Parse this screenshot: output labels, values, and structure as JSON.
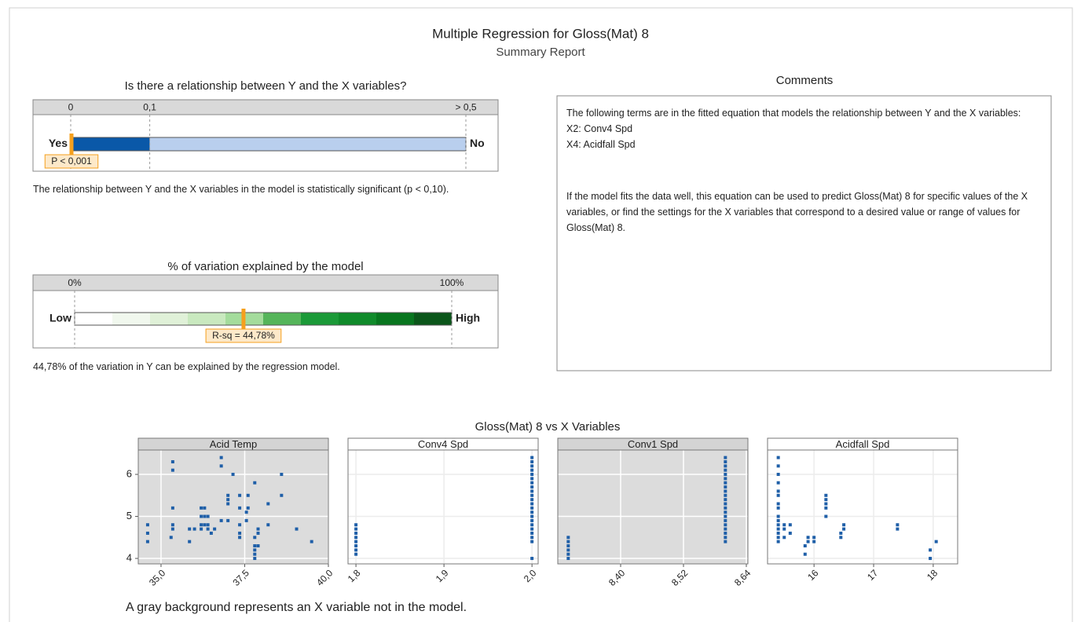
{
  "header": {
    "title": "Multiple Regression for Gloss(Mat) 8",
    "subtitle": "Summary Report"
  },
  "chart_data": [
    {
      "type": "gauge",
      "title": "Is there a relationship between Y and the X variables?",
      "xlim": [
        0,
        0.5
      ],
      "xticks": [
        0,
        {
          "value": 0.1,
          "label": "0,1"
        },
        {
          "value": 0.5,
          "label": "> 0,5"
        }
      ],
      "low_label": "Yes",
      "high_label": "No",
      "colors": [
        "#0a58a8",
        "#b9cfee"
      ],
      "marker_color": "#f5a01e",
      "values": [
        0.001
      ],
      "value_labels": [
        "P < 0,001"
      ],
      "description": "The relationship between Y and the X variables in the model is statistically significant (p < 0,10)."
    },
    {
      "type": "gauge",
      "title": "% of variation explained by the model",
      "xlim": [
        0,
        100
      ],
      "xticks": [
        {
          "value": 0,
          "label": "0%"
        },
        {
          "value": 100,
          "label": "100%"
        }
      ],
      "low_label": "Low",
      "high_label": "High",
      "colors": [
        "#ffffff",
        "#f1f8ee",
        "#e0f1d8",
        "#c9e9bf",
        "#a4dc9c",
        "#55b55a",
        "#1b9a38",
        "#108b2b",
        "#08761f",
        "#0b561a"
      ],
      "marker_color": "#f5a01e",
      "values": [
        44.78
      ],
      "value_labels": [
        "R-sq = 44,78%"
      ],
      "description": "44,78% of the variation in Y can be explained by the regression model."
    },
    {
      "type": "scatter",
      "title": "Gloss(Mat) 8 vs X Variables",
      "color": "#1f5fa8",
      "ylim": [
        3.87,
        6.58
      ],
      "yticks": [
        4,
        5,
        6
      ],
      "panels": [
        {
          "title": "Acid Temp",
          "in_model": false,
          "xlim": [
            34.32,
            40.0
          ],
          "xticks": [
            {
              "value": 35,
              "label": "35,0"
            },
            {
              "value": 37.5,
              "label": "37,5"
            },
            {
              "value": 40,
              "label": "40,0"
            }
          ],
          "x": [
            34.6,
            34.6,
            34.6,
            35.35,
            35.35,
            35.35,
            35.35,
            35.35,
            35.3,
            35.85,
            35.85,
            36.0,
            36.2,
            36.2,
            36.2,
            36.2,
            36.3,
            36.3,
            36.3,
            36.4,
            36.4,
            36.4,
            36.5,
            36.6,
            36.8,
            36.8,
            36.8,
            37.0,
            37.0,
            37.0,
            37.0,
            37.15,
            37.35,
            37.35,
            37.35,
            37.35,
            37.35,
            37.55,
            37.55,
            37.6,
            37.6,
            37.8,
            37.8,
            37.8,
            37.8,
            37.8,
            37.8,
            37.9,
            37.9,
            37.9,
            38.2,
            38.2,
            38.6,
            38.6,
            39.05,
            39.5
          ],
          "values": [
            4.8,
            4.6,
            4.4,
            6.3,
            6.1,
            5.2,
            4.8,
            4.7,
            4.5,
            4.4,
            4.7,
            4.7,
            5.2,
            5.0,
            4.8,
            4.7,
            5.2,
            5.0,
            4.8,
            5.0,
            4.8,
            4.7,
            4.6,
            4.7,
            6.4,
            6.2,
            4.9,
            5.5,
            5.4,
            5.3,
            4.9,
            6.0,
            5.5,
            5.2,
            4.8,
            4.6,
            4.5,
            4.9,
            5.1,
            5.5,
            5.2,
            5.8,
            4.5,
            4.3,
            4.2,
            4.1,
            4.0,
            4.7,
            4.6,
            4.3,
            5.3,
            4.8,
            6.0,
            5.5,
            4.7,
            4.4
          ]
        },
        {
          "title": "Conv4 Spd",
          "in_model": true,
          "xlim": [
            1.791,
            2.007
          ],
          "xticks": [
            {
              "value": 1.8,
              "label": "1,8"
            },
            {
              "value": 1.9,
              "label": "1,9"
            },
            {
              "value": 2.0,
              "label": "2,0"
            }
          ],
          "x": [
            1.8,
            1.8,
            1.8,
            1.8,
            1.8,
            1.8,
            1.8,
            1.8,
            2.0,
            2.0,
            2.0,
            2.0,
            2.0,
            2.0,
            2.0,
            2.0,
            2.0,
            2.0,
            2.0,
            2.0,
            2.0,
            2.0,
            2.0,
            2.0,
            2.0,
            2.0,
            2.0,
            2.0,
            2.0,
            2.0
          ],
          "values": [
            4.1,
            4.2,
            4.3,
            4.4,
            4.5,
            4.6,
            4.7,
            4.8,
            4.0,
            4.4,
            4.5,
            4.6,
            4.7,
            4.8,
            4.9,
            5.0,
            5.1,
            5.2,
            5.3,
            5.4,
            5.5,
            5.6,
            5.7,
            5.8,
            5.9,
            6.0,
            6.1,
            6.2,
            6.3,
            6.4
          ]
        },
        {
          "title": "Conv1 Spd",
          "in_model": false,
          "xlim": [
            8.28,
            8.643
          ],
          "xticks": [
            {
              "value": 8.4,
              "label": "8,40"
            },
            {
              "value": 8.52,
              "label": "8,52"
            },
            {
              "value": 8.64,
              "label": "8,64"
            }
          ],
          "x": [
            8.3,
            8.3,
            8.3,
            8.3,
            8.3,
            8.3,
            8.6,
            8.6,
            8.6,
            8.6,
            8.6,
            8.6,
            8.6,
            8.6,
            8.6,
            8.6,
            8.6,
            8.6,
            8.6,
            8.6,
            8.6,
            8.6,
            8.6,
            8.6,
            8.6,
            8.6,
            8.6
          ],
          "values": [
            4.0,
            4.1,
            4.2,
            4.3,
            4.4,
            4.5,
            4.4,
            4.5,
            4.6,
            4.7,
            4.8,
            4.9,
            5.0,
            5.1,
            5.2,
            5.3,
            5.4,
            5.5,
            5.6,
            5.7,
            5.8,
            5.9,
            6.0,
            6.1,
            6.2,
            6.3,
            6.4
          ]
        },
        {
          "title": "Acidfall Spd",
          "in_model": true,
          "xlim": [
            15.22,
            18.41
          ],
          "xticks": [
            16,
            17,
            18
          ],
          "x": [
            15.4,
            15.4,
            15.4,
            15.4,
            15.4,
            15.4,
            15.4,
            15.4,
            15.4,
            15.4,
            15.4,
            15.4,
            15.4,
            15.4,
            15.4,
            15.5,
            15.5,
            15.5,
            15.6,
            15.6,
            15.85,
            15.85,
            15.9,
            15.9,
            16.0,
            16.0,
            16.2,
            16.2,
            16.2,
            16.2,
            16.2,
            16.45,
            16.45,
            16.5,
            16.5,
            17.4,
            17.4,
            17.95,
            17.95,
            18.05
          ],
          "values": [
            4.4,
            4.5,
            4.6,
            4.7,
            4.8,
            4.9,
            5.0,
            5.2,
            5.3,
            5.5,
            5.6,
            5.8,
            6.0,
            6.2,
            6.4,
            4.8,
            4.7,
            4.5,
            4.8,
            4.6,
            4.1,
            4.3,
            4.5,
            4.4,
            4.5,
            4.4,
            5.0,
            5.2,
            5.3,
            5.4,
            5.5,
            4.5,
            4.6,
            4.7,
            4.8,
            4.7,
            4.8,
            4.0,
            4.2,
            4.4
          ]
        }
      ]
    }
  ],
  "comments": {
    "title": "Comments",
    "paragraphs": [
      "The following terms are in the fitted equation that models the relationship between Y and the X variables:",
      "X2: Conv4 Spd",
      "X4: Acidfall Spd",
      "If the model fits the data well, this equation can be used to predict Gloss(Mat) 8 for specific values of the X variables, or find the settings for the X variables that correspond to a desired value or range of values for Gloss(Mat) 8."
    ]
  },
  "footnote": "A gray background represents an X variable not in the model."
}
